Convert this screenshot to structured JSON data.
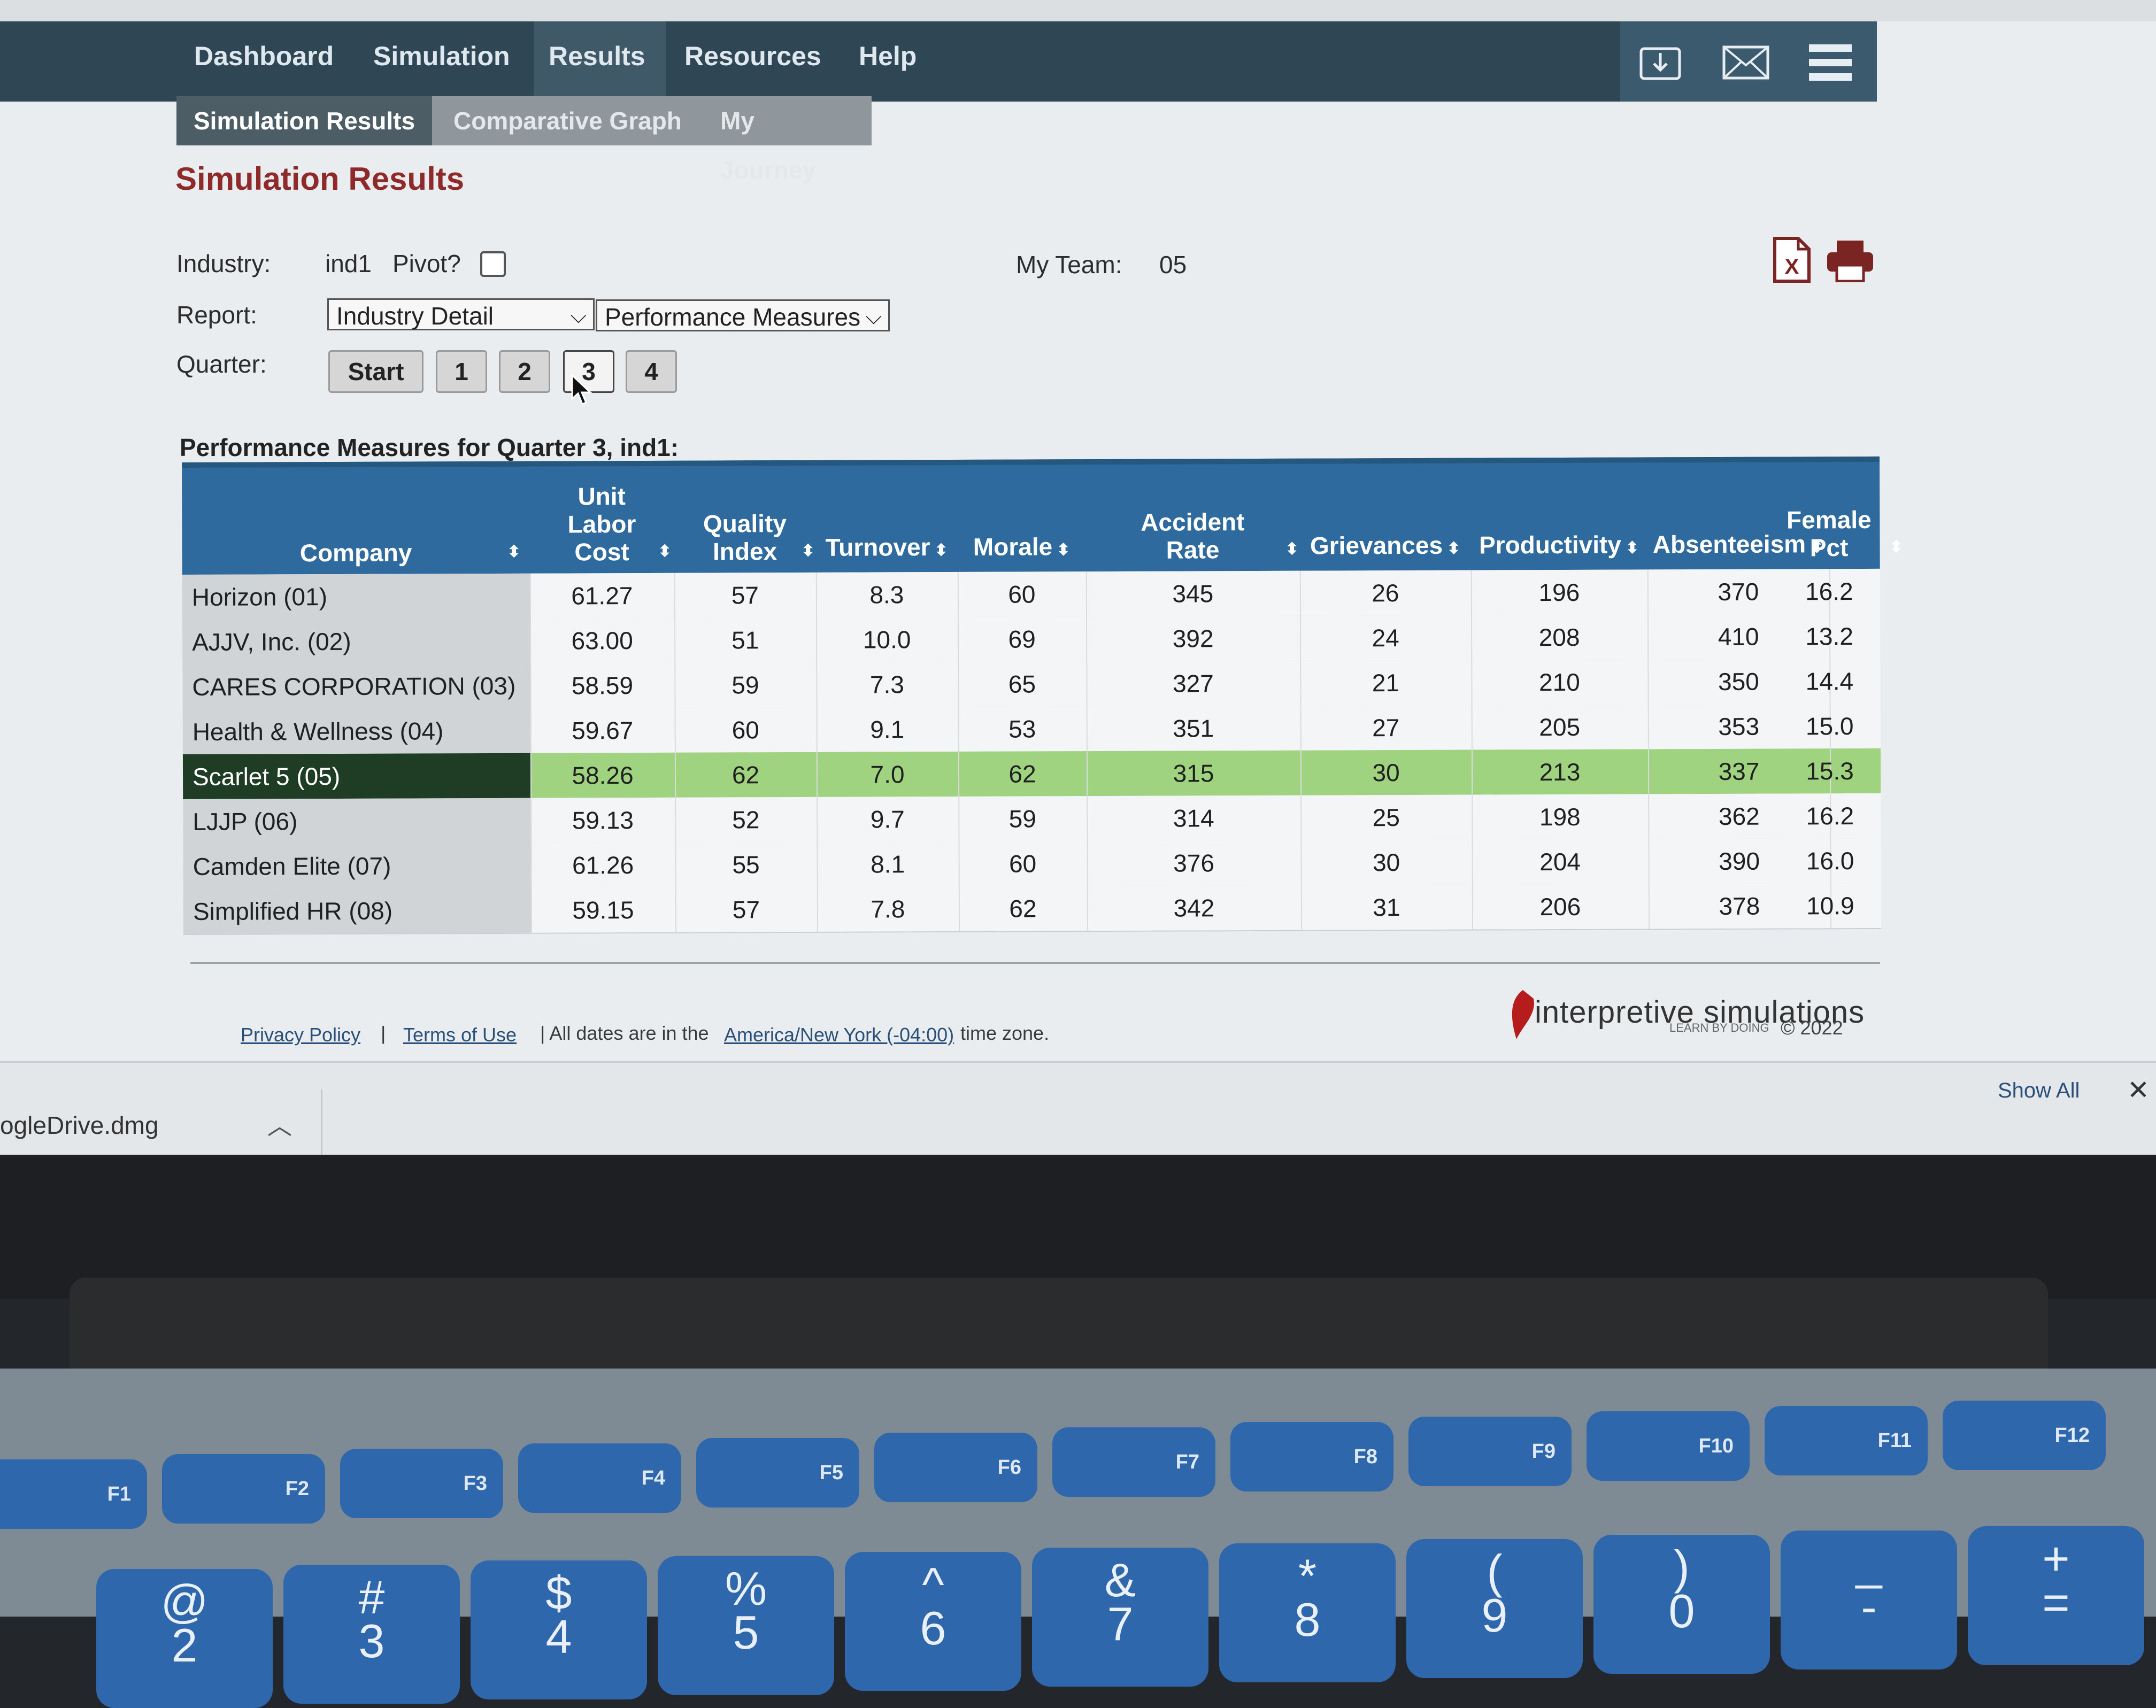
{
  "nav": {
    "items": [
      "Dashboard",
      "Simulation",
      "Results",
      "Resources",
      "Help"
    ],
    "active_index": 2,
    "tools": [
      "download-icon",
      "mail-icon",
      "menu-icon"
    ]
  },
  "subnav": {
    "tabs": [
      "Simulation Results",
      "Comparative Graph",
      "My Journey"
    ],
    "active_index": 0
  },
  "page_title": "Simulation Results",
  "filters": {
    "industry_label": "Industry:",
    "industry_value": "ind1",
    "pivot_label": "Pivot?",
    "pivot_checked": false,
    "my_team_label": "My Team:",
    "my_team_value": "05",
    "report_label": "Report:",
    "report_type": "Industry Detail",
    "report_measure": "Performance Measures",
    "quarter_label": "Quarter:",
    "quarters": [
      "Start",
      "1",
      "2",
      "3",
      "4"
    ],
    "selected_quarter": "3"
  },
  "icons": {
    "export": "excel-icon",
    "print": "print-icon"
  },
  "table": {
    "caption": "Performance Measures for Quarter 3, ind1:",
    "headers": {
      "company": "Company",
      "unit_labor_cost": [
        "Unit",
        "Labor",
        "Cost"
      ],
      "quality_index": [
        "Quality",
        "Index"
      ],
      "turnover": "Turnover",
      "morale": "Morale",
      "accident_rate": [
        "Accident",
        "Rate"
      ],
      "grievances": "Grievances",
      "productivity": "Productivity",
      "absenteeism": "Absenteeism",
      "female_pct": [
        "Female",
        "Pct"
      ]
    },
    "highlight_row": 4,
    "rows": [
      {
        "company": "Horizon (01)",
        "ulc": "61.27",
        "qi": "57",
        "turnover": "8.3",
        "morale": "60",
        "accident": "345",
        "grievances": "26",
        "productivity": "196",
        "absenteeism": "370",
        "female": "16.2"
      },
      {
        "company": "AJJV, Inc. (02)",
        "ulc": "63.00",
        "qi": "51",
        "turnover": "10.0",
        "morale": "69",
        "accident": "392",
        "grievances": "24",
        "productivity": "208",
        "absenteeism": "410",
        "female": "13.2"
      },
      {
        "company": "CARES CORPORATION (03)",
        "ulc": "58.59",
        "qi": "59",
        "turnover": "7.3",
        "morale": "65",
        "accident": "327",
        "grievances": "21",
        "productivity": "210",
        "absenteeism": "350",
        "female": "14.4"
      },
      {
        "company": "Health & Wellness (04)",
        "ulc": "59.67",
        "qi": "60",
        "turnover": "9.1",
        "morale": "53",
        "accident": "351",
        "grievances": "27",
        "productivity": "205",
        "absenteeism": "353",
        "female": "15.0"
      },
      {
        "company": "Scarlet 5 (05)",
        "ulc": "58.26",
        "qi": "62",
        "turnover": "7.0",
        "morale": "62",
        "accident": "315",
        "grievances": "30",
        "productivity": "213",
        "absenteeism": "337",
        "female": "15.3"
      },
      {
        "company": "LJJP (06)",
        "ulc": "59.13",
        "qi": "52",
        "turnover": "9.7",
        "morale": "59",
        "accident": "314",
        "grievances": "25",
        "productivity": "198",
        "absenteeism": "362",
        "female": "16.2"
      },
      {
        "company": "Camden Elite (07)",
        "ulc": "61.26",
        "qi": "55",
        "turnover": "8.1",
        "morale": "60",
        "accident": "376",
        "grievances": "30",
        "productivity": "204",
        "absenteeism": "390",
        "female": "16.0"
      },
      {
        "company": "Simplified HR (08)",
        "ulc": "59.15",
        "qi": "57",
        "turnover": "7.8",
        "morale": "62",
        "accident": "342",
        "grievances": "31",
        "productivity": "206",
        "absenteeism": "378",
        "female": "10.9"
      }
    ]
  },
  "footer": {
    "privacy": "Privacy Policy",
    "sep": "|",
    "terms": "Terms of Use",
    "tz_prefix": "| All dates are in the",
    "tz_link": "America/New York (-04:00)",
    "tz_suffix": "time zone.",
    "brand": "interpretive simulations",
    "tagline": "LEARN BY DOING",
    "copyright": "© 2022"
  },
  "download_shelf": {
    "file": "ogleDrive.dmg",
    "show_all": "Show All",
    "close": "✕"
  },
  "keyboard": {
    "fkeys": [
      "F1",
      "F2",
      "F3",
      "F4",
      "F5",
      "F6",
      "F7",
      "F8",
      "F9",
      "F10",
      "F11",
      "F12"
    ],
    "number_row": [
      [
        "@",
        "2"
      ],
      [
        "#",
        "3"
      ],
      [
        "$",
        "4"
      ],
      [
        "%",
        "5"
      ],
      [
        "^",
        "6"
      ],
      [
        "&",
        "7"
      ],
      [
        "*",
        "8"
      ],
      [
        "(",
        "9"
      ],
      [
        ")",
        "0"
      ],
      [
        "_",
        "-"
      ],
      [
        "+",
        "="
      ]
    ]
  },
  "colors": {
    "nav_bg": "#2f4754",
    "title": "#8e2a2a",
    "table_header": "#2e6a9e",
    "highlight_row": "#9fd37f",
    "highlight_company": "#1f3d24",
    "keycap": "#2f67ad"
  }
}
